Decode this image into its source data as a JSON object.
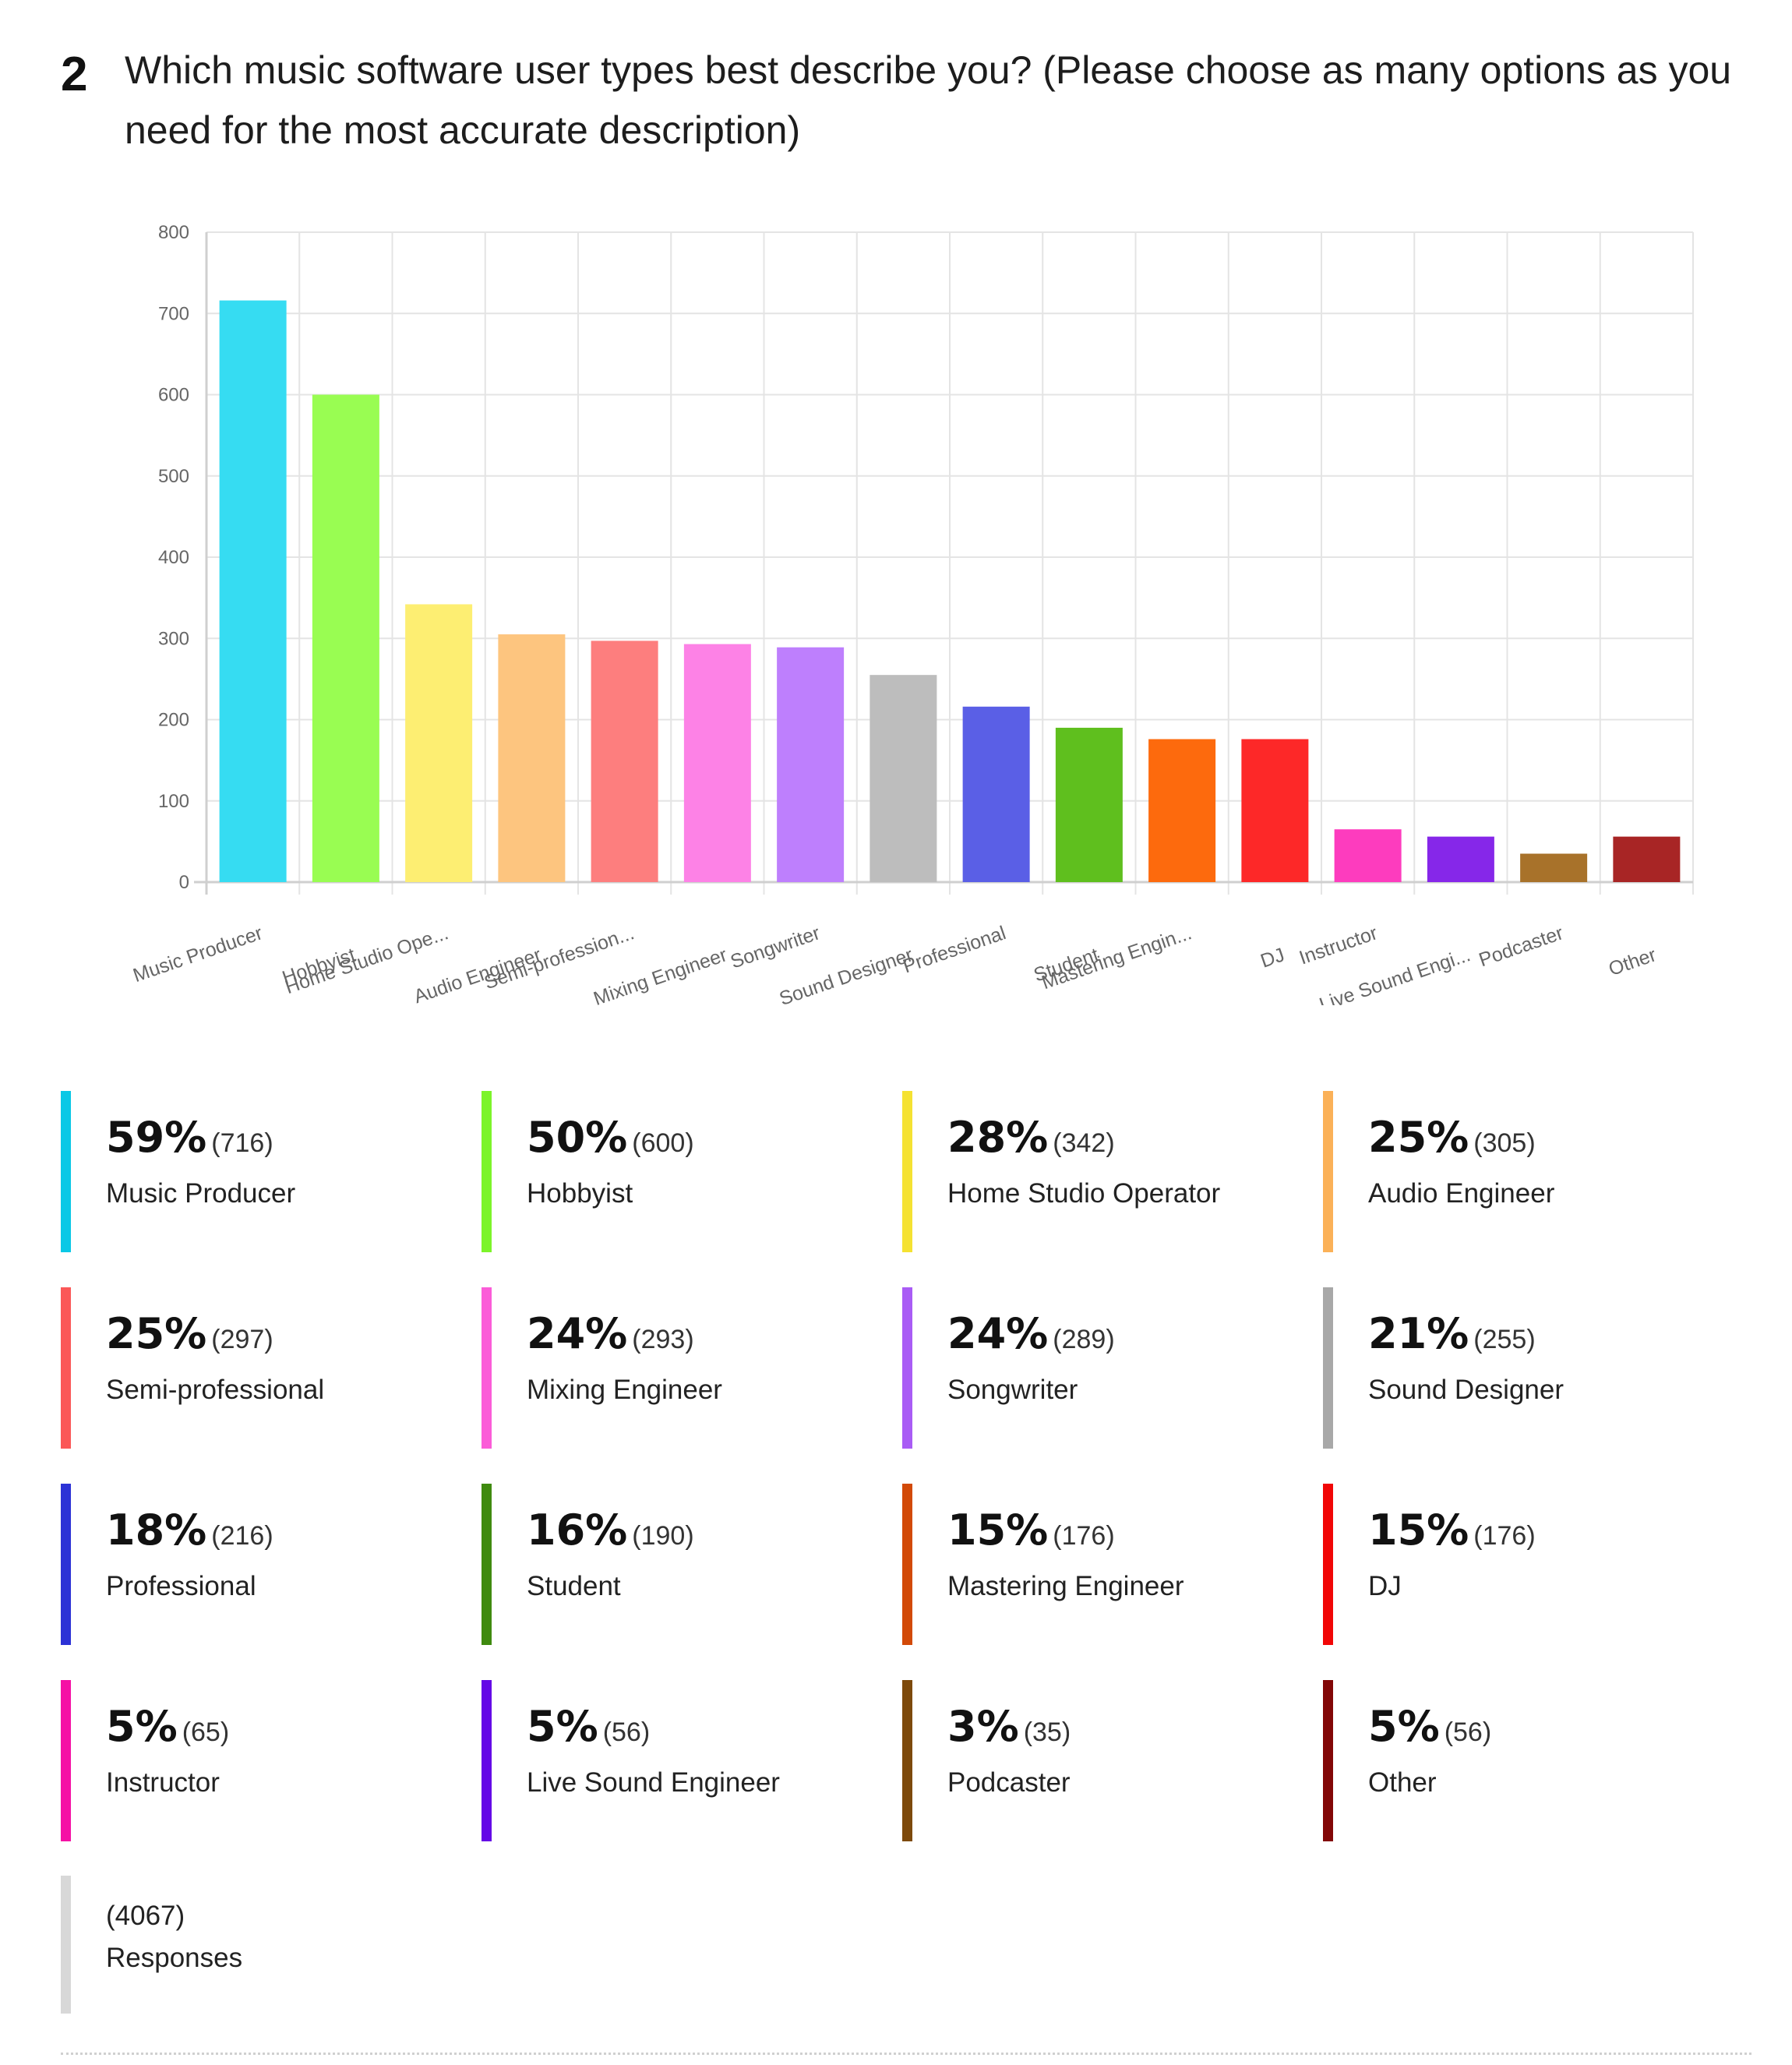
{
  "question": {
    "number": "2",
    "text": "Which music software user types best describe you? (Please choose as many options as you need for the most accurate description)"
  },
  "chart_data": {
    "type": "bar",
    "categories": [
      "Music Producer",
      "Hobbyist",
      "Home Studio Ope...",
      "Audio Engineer",
      "Semi-profession...",
      "Mixing Engineer",
      "Songwriter",
      "Sound Designer",
      "Professional",
      "Student",
      "Mastering Engin...",
      "DJ",
      "Instructor",
      "Live Sound Engi...",
      "Podcaster",
      "Other"
    ],
    "values": [
      716,
      600,
      342,
      305,
      297,
      293,
      289,
      255,
      216,
      190,
      176,
      176,
      65,
      56,
      35,
      56
    ],
    "colors": [
      "#36dcf2",
      "#99fd52",
      "#fdee72",
      "#fdc57f",
      "#fd7e7e",
      "#fd82e6",
      "#be7ffd",
      "#bdbdbd",
      "#5a5fe6",
      "#5fbf1e",
      "#fd6a0d",
      "#fd2828",
      "#fd3cbe",
      "#8627e9",
      "#a8722a",
      "#a82525"
    ],
    "yticks": [
      0,
      100,
      200,
      300,
      400,
      500,
      600,
      700,
      800
    ],
    "ylim": [
      0,
      800
    ],
    "grid": true
  },
  "legend": [
    {
      "pct": "59%",
      "count": "(716)",
      "label": "Music Producer",
      "color": "#0ac8e6"
    },
    {
      "pct": "50%",
      "count": "(600)",
      "label": "Hobbyist",
      "color": "#7cf42a"
    },
    {
      "pct": "28%",
      "count": "(342)",
      "label": "Home Studio Operator",
      "color": "#f5e232"
    },
    {
      "pct": "25%",
      "count": "(305)",
      "label": "Audio Engineer",
      "color": "#fbb158"
    },
    {
      "pct": "25%",
      "count": "(297)",
      "label": "Semi-professional",
      "color": "#fb5858"
    },
    {
      "pct": "24%",
      "count": "(293)",
      "label": "Mixing Engineer",
      "color": "#fb5cd8"
    },
    {
      "pct": "24%",
      "count": "(289)",
      "label": "Songwriter",
      "color": "#a95cf5"
    },
    {
      "pct": "21%",
      "count": "(255)",
      "label": "Sound Designer",
      "color": "#a8a8a8"
    },
    {
      "pct": "18%",
      "count": "(216)",
      "label": "Professional",
      "color": "#2c32d6"
    },
    {
      "pct": "16%",
      "count": "(190)",
      "label": "Student",
      "color": "#3f8a0f"
    },
    {
      "pct": "15%",
      "count": "(176)",
      "label": "Mastering Engineer",
      "color": "#d24a08"
    },
    {
      "pct": "15%",
      "count": "(176)",
      "label": "DJ",
      "color": "#f10606"
    },
    {
      "pct": "5%",
      "count": "(65)",
      "label": "Instructor",
      "color": "#f511a5"
    },
    {
      "pct": "5%",
      "count": "(56)",
      "label": "Live Sound Engineer",
      "color": "#6407e6"
    },
    {
      "pct": "3%",
      "count": "(35)",
      "label": "Podcaster",
      "color": "#7d4a0c"
    },
    {
      "pct": "5%",
      "count": "(56)",
      "label": "Other",
      "color": "#820707"
    }
  ],
  "total": {
    "count": "(4067)",
    "label": "Responses"
  }
}
